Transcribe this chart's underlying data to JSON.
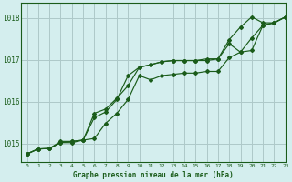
{
  "title": "Graphe pression niveau de la mer (hPa)",
  "bg_color": "#d4eeee",
  "grid_color": "#adc8c8",
  "line_color": "#1a5c1a",
  "xlim": [
    -0.5,
    23
  ],
  "ylim": [
    1014.55,
    1018.35
  ],
  "yticks": [
    1015,
    1016,
    1017,
    1018
  ],
  "xticks": [
    0,
    1,
    2,
    3,
    4,
    5,
    6,
    7,
    8,
    9,
    10,
    11,
    12,
    13,
    14,
    15,
    16,
    17,
    18,
    19,
    20,
    21,
    22,
    23
  ],
  "series1": [
    1014.75,
    1014.87,
    1014.88,
    1015.02,
    1015.02,
    1015.08,
    1015.72,
    1015.82,
    1016.08,
    1016.38,
    1016.82,
    1016.88,
    1016.95,
    1016.98,
    1016.98,
    1016.98,
    1017.02,
    1017.02,
    1017.48,
    1017.78,
    1018.02,
    1017.88,
    1017.88,
    1018.02
  ],
  "series2": [
    1014.75,
    1014.87,
    1014.88,
    1015.02,
    1015.05,
    1015.08,
    1015.62,
    1015.75,
    1016.05,
    1016.62,
    1016.82,
    1016.88,
    1016.95,
    1016.98,
    1016.98,
    1016.98,
    1016.98,
    1017.02,
    1017.38,
    1017.18,
    1017.52,
    1017.82,
    1017.88,
    1018.02
  ],
  "series3": [
    1014.75,
    1014.87,
    1014.88,
    1015.05,
    1015.05,
    1015.08,
    1015.12,
    1015.48,
    1015.72,
    1016.05,
    1016.62,
    1016.52,
    1016.62,
    1016.65,
    1016.68,
    1016.68,
    1016.72,
    1016.72,
    1017.05,
    1017.18,
    1017.22,
    1017.82,
    1017.88,
    1018.02
  ]
}
